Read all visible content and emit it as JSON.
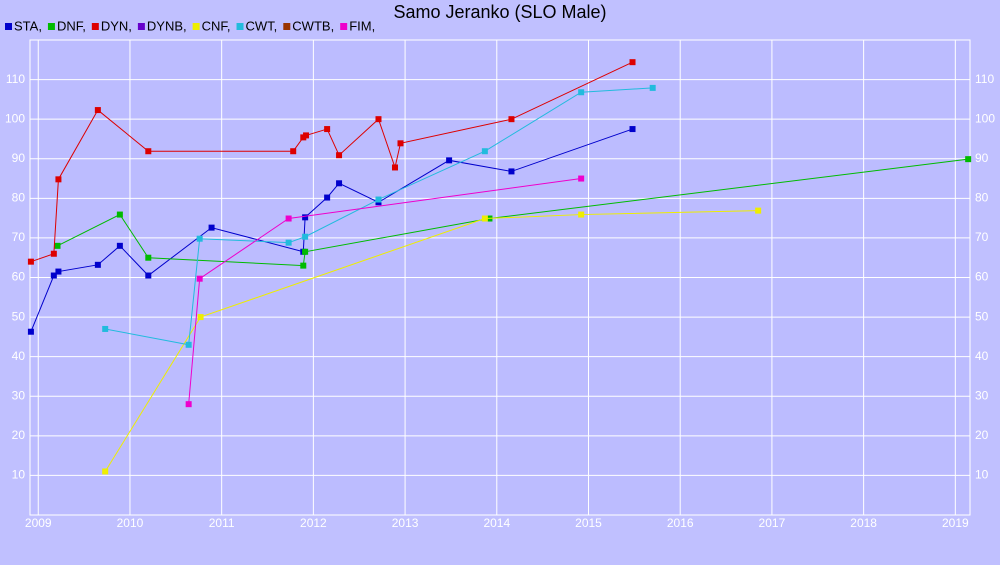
{
  "chart_data": {
    "type": "line",
    "title": "Samo Jeranko (SLO Male)",
    "xlim": [
      2008.91,
      2019.16
    ],
    "xticks": [
      2009,
      2010,
      2011,
      2012,
      2013,
      2014,
      2015,
      2016,
      2017,
      2018,
      2019
    ],
    "ylim": [
      0,
      120
    ],
    "yticks": [
      10,
      20,
      30,
      40,
      50,
      60,
      70,
      80,
      90,
      100,
      110
    ],
    "grid": true,
    "legend": "top-left",
    "series": [
      {
        "name": "STA,",
        "color": "#0000cc",
        "x": [
          2008.92,
          2009.17,
          2009.22,
          2009.65,
          2009.89,
          2010.2,
          2010.89,
          2011.89,
          2011.91,
          2012.15,
          2012.28,
          2012.71,
          2013.48,
          2014.16,
          2015.48
        ],
        "values": [
          46.3,
          60.5,
          61.5,
          63.2,
          68,
          60.5,
          72.6,
          66.5,
          75.2,
          80.2,
          83.8,
          79,
          89.6,
          86.8,
          97.5
        ]
      },
      {
        "name": "DNF,",
        "color": "#00bb00",
        "x": [
          2009.21,
          2009.89,
          2010.2,
          2011.89,
          2011.91,
          2013.92,
          2019.14
        ],
        "values": [
          68,
          75.9,
          65,
          63,
          66.5,
          74.9,
          89.9
        ]
      },
      {
        "name": "DYN,",
        "color": "#dd0000",
        "x": [
          2008.92,
          2009.17,
          2009.22,
          2009.65,
          2010.2,
          2011.78,
          2011.89,
          2011.92,
          2012.15,
          2012.28,
          2012.71,
          2012.89,
          2012.95,
          2014.16,
          2015.48
        ],
        "values": [
          64,
          66,
          84.8,
          102.3,
          91.9,
          91.9,
          95.4,
          95.9,
          97.5,
          90.9,
          100,
          87.8,
          93.9,
          100,
          114.4
        ]
      },
      {
        "name": "DYNB,",
        "color": "#6600cc",
        "x": [],
        "values": []
      },
      {
        "name": "CNF,",
        "color": "#eeee00",
        "x": [
          2009.73,
          2010.77,
          2013.87,
          2014.92,
          2016.85
        ],
        "values": [
          11,
          50,
          74.9,
          75.9,
          76.9
        ]
      },
      {
        "name": "CWT,",
        "color": "#22bbdd",
        "x": [
          2009.73,
          2010.64,
          2010.76,
          2011.73,
          2011.91,
          2012.71,
          2013.87,
          2014.92,
          2015.7
        ],
        "values": [
          47,
          43,
          69.8,
          68.8,
          70.3,
          79.7,
          91.9,
          106.8,
          107.9
        ]
      },
      {
        "name": "CWTB,",
        "color": "#993300",
        "x": [],
        "values": []
      },
      {
        "name": "FIM,",
        "color": "#ee00cc",
        "x": [
          2010.64,
          2010.76,
          2011.73,
          2014.92
        ],
        "values": [
          28,
          59.7,
          74.9,
          85
        ]
      }
    ]
  }
}
